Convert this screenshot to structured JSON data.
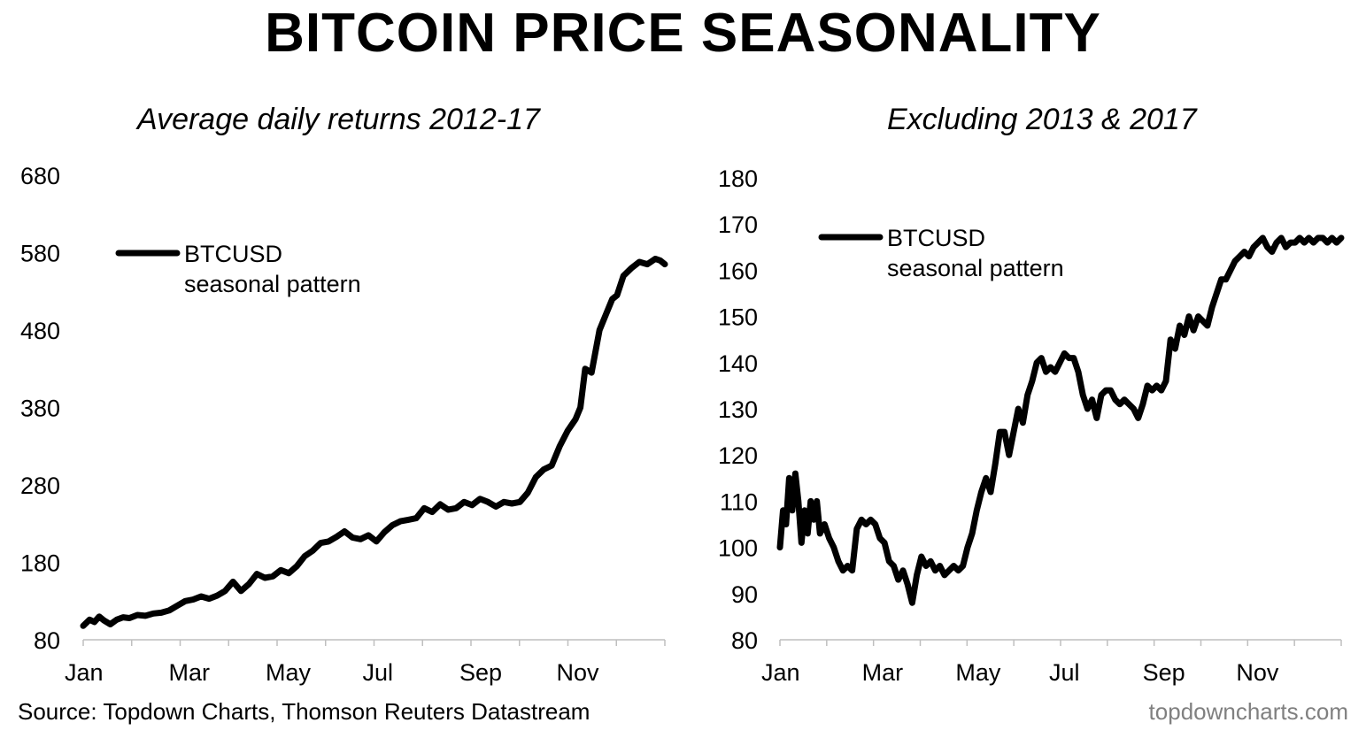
{
  "title": "BITCOIN PRICE SEASONALITY",
  "footer": {
    "source": "Source: Topdown Charts, Thomson Reuters Datastream",
    "brand": "topdowncharts.com"
  },
  "chart_data": [
    {
      "type": "line",
      "title": "Average daily returns 2012-17",
      "xlabel": "",
      "ylabel": "",
      "x_ticks": [
        "Jan",
        "Mar",
        "May",
        "Jul",
        "Sep",
        "Nov"
      ],
      "y_ticks": [
        80,
        180,
        280,
        380,
        480,
        580,
        680
      ],
      "ylim": [
        80,
        680
      ],
      "xlim": [
        1,
        366
      ],
      "grid": false,
      "legend": {
        "position": "top-left",
        "line1": "BTCUSD",
        "line2": "seasonal pattern"
      },
      "series": [
        {
          "name": "BTCUSD seasonal pattern",
          "color": "#000000",
          "x": [
            1,
            5,
            8,
            11,
            14,
            18,
            22,
            26,
            30,
            35,
            40,
            45,
            50,
            55,
            60,
            65,
            70,
            75,
            80,
            85,
            90,
            95,
            100,
            105,
            110,
            115,
            120,
            125,
            130,
            135,
            140,
            145,
            150,
            155,
            160,
            165,
            170,
            175,
            180,
            185,
            190,
            195,
            200,
            205,
            210,
            215,
            220,
            225,
            230,
            235,
            240,
            245,
            250,
            255,
            260,
            265,
            270,
            275,
            280,
            285,
            290,
            295,
            300,
            305,
            310,
            313,
            316,
            320,
            325,
            330,
            333,
            336,
            340,
            345,
            350,
            355,
            360,
            363,
            366
          ],
          "values": [
            98,
            106,
            103,
            110,
            105,
            100,
            106,
            109,
            108,
            112,
            111,
            114,
            115,
            118,
            124,
            130,
            132,
            136,
            133,
            137,
            143,
            155,
            143,
            152,
            165,
            160,
            162,
            170,
            166,
            175,
            188,
            195,
            205,
            207,
            213,
            220,
            212,
            210,
            215,
            207,
            219,
            228,
            233,
            235,
            237,
            250,
            245,
            255,
            248,
            250,
            258,
            254,
            262,
            258,
            252,
            258,
            256,
            258,
            270,
            290,
            300,
            305,
            330,
            350,
            365,
            380,
            430,
            425,
            480,
            505,
            520,
            525,
            550,
            560,
            568,
            565,
            572,
            570,
            565
          ],
          "values_note": ""
        }
      ]
    },
    {
      "type": "line",
      "title": "Excluding 2013 & 2017",
      "xlabel": "",
      "ylabel": "",
      "x_ticks": [
        "Jan",
        "Mar",
        "May",
        "Jul",
        "Sep",
        "Nov"
      ],
      "y_ticks": [
        80,
        90,
        100,
        110,
        120,
        130,
        140,
        150,
        160,
        170,
        180
      ],
      "ylim": [
        80,
        180
      ],
      "xlim": [
        1,
        366
      ],
      "grid": false,
      "legend": {
        "position": "top-left",
        "line1": "BTCUSD",
        "line2": "seasonal pattern"
      },
      "series": [
        {
          "name": "BTCUSD seasonal pattern",
          "color": "#000000",
          "x": [
            1,
            3,
            5,
            7,
            9,
            11,
            13,
            15,
            17,
            19,
            21,
            23,
            25,
            27,
            30,
            33,
            36,
            39,
            42,
            45,
            48,
            51,
            54,
            57,
            60,
            63,
            66,
            69,
            72,
            75,
            78,
            81,
            84,
            87,
            90,
            93,
            96,
            99,
            102,
            105,
            108,
            111,
            114,
            117,
            120,
            123,
            126,
            129,
            132,
            135,
            138,
            141,
            144,
            147,
            150,
            153,
            156,
            159,
            162,
            165,
            168,
            171,
            174,
            177,
            180,
            183,
            186,
            189,
            192,
            195,
            198,
            201,
            204,
            207,
            210,
            213,
            216,
            219,
            222,
            225,
            228,
            231,
            234,
            237,
            240,
            243,
            246,
            249,
            252,
            255,
            258,
            261,
            264,
            267,
            270,
            273,
            276,
            279,
            282,
            285,
            288,
            291,
            294,
            297,
            300,
            303,
            306,
            309,
            312,
            315,
            318,
            321,
            324,
            327,
            330,
            333,
            336,
            339,
            342,
            345,
            348,
            351,
            354,
            357,
            360,
            363,
            366
          ],
          "values": [
            100,
            108,
            105,
            115,
            108,
            116,
            110,
            101,
            108,
            103,
            110,
            106,
            110,
            103,
            105,
            102,
            100,
            97,
            95,
            96,
            95,
            104,
            106,
            105,
            106,
            105,
            102,
            101,
            97,
            96,
            93,
            95,
            92,
            88,
            94,
            98,
            96,
            97,
            95,
            96,
            94,
            95,
            96,
            95,
            96,
            100,
            103,
            108,
            112,
            115,
            112,
            118,
            125,
            125,
            120,
            125,
            130,
            127,
            133,
            136,
            140,
            141,
            138,
            139,
            138,
            140,
            142,
            141,
            141,
            138,
            133,
            130,
            132,
            128,
            133,
            134,
            134,
            132,
            131,
            132,
            131,
            130,
            128,
            131,
            135,
            134,
            135,
            134,
            136,
            145,
            143,
            148,
            146,
            150,
            147,
            150,
            149,
            148,
            152,
            155,
            158,
            158,
            160,
            162,
            163,
            164,
            163,
            165,
            166,
            167,
            165,
            164,
            166,
            167,
            165,
            166,
            166,
            167,
            166,
            167,
            166,
            167,
            167,
            166,
            167,
            166,
            167
          ],
          "values_note": ""
        }
      ]
    }
  ]
}
